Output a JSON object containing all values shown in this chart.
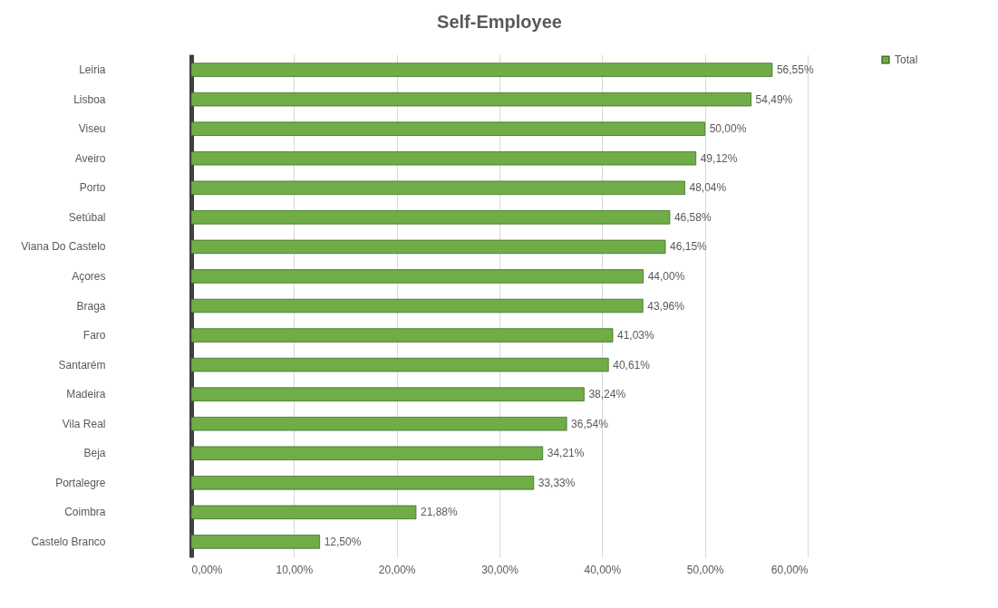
{
  "chart_data": {
    "type": "bar",
    "orientation": "horizontal",
    "title": "Self-Employee",
    "categories": [
      "Leiria",
      "Lisboa",
      "Viseu",
      "Aveiro",
      "Porto",
      "Setúbal",
      "Viana Do Castelo",
      "Açores",
      "Braga",
      "Faro",
      "Santarém",
      "Madeira",
      "Vila Real",
      "Beja",
      "Portalegre",
      "Coimbra",
      "Castelo Branco"
    ],
    "series": [
      {
        "name": "Total",
        "color": "#70ad47",
        "values": [
          56.55,
          54.49,
          50.0,
          49.12,
          48.04,
          46.58,
          46.15,
          44.0,
          43.96,
          41.03,
          40.61,
          38.24,
          36.54,
          34.21,
          33.33,
          21.88,
          12.5
        ],
        "value_labels": [
          "56,55%",
          "54,49%",
          "50,00%",
          "49,12%",
          "48,04%",
          "46,58%",
          "46,15%",
          "44,00%",
          "43,96%",
          "41,03%",
          "40,61%",
          "38,24%",
          "36,54%",
          "34,21%",
          "33,33%",
          "21,88%",
          "12,50%"
        ]
      }
    ],
    "xlim": [
      0,
      60
    ],
    "xticks": [
      {
        "value": 0,
        "label": "0,00%"
      },
      {
        "value": 10,
        "label": "10,00%"
      },
      {
        "value": 20,
        "label": "20,00%"
      },
      {
        "value": 30,
        "label": "30,00%"
      },
      {
        "value": 40,
        "label": "40,00%"
      },
      {
        "value": 50,
        "label": "50,00%"
      },
      {
        "value": 60,
        "label": "60,00%"
      }
    ],
    "grid": "x",
    "legend": "right"
  }
}
